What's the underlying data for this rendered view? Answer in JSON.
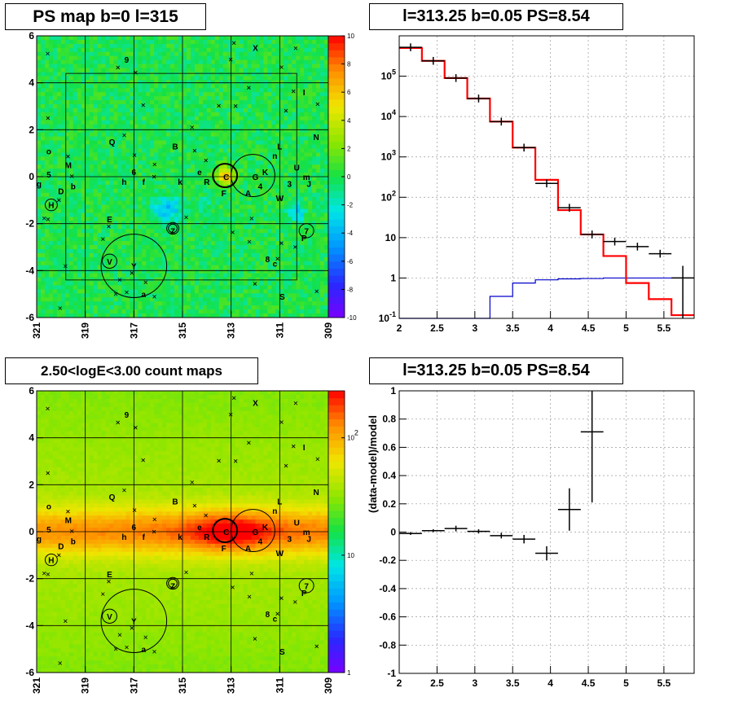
{
  "panels": {
    "top_left_title": "PS map b=0 l=315",
    "top_right_title": "l=313.25 b=0.05 PS=8.54",
    "bottom_left_title": "2.50<logE<3.00 count maps",
    "bottom_right_title": "l=313.25 b=0.05 PS=8.54"
  },
  "colors": {
    "data": "#000000",
    "model": "#ff0000",
    "background_model": "#0000cc",
    "grid": "#9a9a9a"
  },
  "chart_data": [
    {
      "type": "heatmap",
      "title": "PS map b=0 l=315",
      "x_ticks": [
        "321",
        "319",
        "317",
        "315",
        "313",
        "311",
        "309"
      ],
      "y_ticks": [
        "-6",
        "-4",
        "-2",
        "0",
        "2",
        "4",
        "6"
      ],
      "xlim": [
        321,
        309
      ],
      "ylim": [
        -6,
        6
      ],
      "colorbar_ticks": [
        "-10",
        "-8",
        "-6",
        "-4",
        "-2",
        "0",
        "2",
        "4",
        "6",
        "8",
        "10"
      ],
      "colorbar_range": [
        -10,
        10
      ],
      "labels": [
        {
          "text": "9",
          "l": 317.3,
          "b": 5.0
        },
        {
          "text": "X",
          "l": 312.0,
          "b": 5.5
        },
        {
          "text": "I",
          "l": 310.0,
          "b": 3.6
        },
        {
          "text": "N",
          "l": 309.5,
          "b": 1.7
        },
        {
          "text": "Q",
          "l": 317.9,
          "b": 1.5
        },
        {
          "text": "B",
          "l": 315.3,
          "b": 1.3
        },
        {
          "text": "L",
          "l": 311.0,
          "b": 1.3
        },
        {
          "text": "n",
          "l": 311.2,
          "b": 0.9
        },
        {
          "text": "o",
          "l": 320.5,
          "b": 1.1
        },
        {
          "text": "M",
          "l": 319.7,
          "b": 0.5
        },
        {
          "text": "U",
          "l": 310.3,
          "b": 0.4
        },
        {
          "text": "5",
          "l": 320.5,
          "b": 0.1
        },
        {
          "text": "6",
          "l": 317.0,
          "b": 0.2
        },
        {
          "text": "e",
          "l": 314.3,
          "b": 0.2
        },
        {
          "text": "m",
          "l": 309.9,
          "b": 0.0
        },
        {
          "text": "g",
          "l": 320.9,
          "b": -0.3
        },
        {
          "text": "D",
          "l": 320.0,
          "b": -0.6
        },
        {
          "text": "b",
          "l": 319.5,
          "b": -0.4
        },
        {
          "text": "h",
          "l": 317.4,
          "b": -0.2
        },
        {
          "text": "f",
          "l": 316.6,
          "b": -0.2
        },
        {
          "text": "k",
          "l": 315.1,
          "b": -0.2
        },
        {
          "text": "R",
          "l": 314.0,
          "b": -0.2
        },
        {
          "text": "C",
          "l": 313.2,
          "b": 0.0
        },
        {
          "text": "G",
          "l": 312.0,
          "b": 0.0
        },
        {
          "text": "K",
          "l": 311.6,
          "b": 0.2
        },
        {
          "text": "F",
          "l": 313.3,
          "b": -0.7
        },
        {
          "text": "4",
          "l": 311.8,
          "b": -0.4
        },
        {
          "text": "A",
          "l": 312.3,
          "b": -0.7
        },
        {
          "text": "3",
          "l": 310.6,
          "b": -0.3
        },
        {
          "text": "J",
          "l": 309.8,
          "b": -0.3
        },
        {
          "text": "W",
          "l": 311.0,
          "b": -0.9
        },
        {
          "text": "H",
          "l": 320.4,
          "b": -1.2
        },
        {
          "text": "E",
          "l": 318.0,
          "b": -1.8
        },
        {
          "text": "Z",
          "l": 315.4,
          "b": -2.3
        },
        {
          "text": "7",
          "l": 309.9,
          "b": -2.3
        },
        {
          "text": "P",
          "l": 310.0,
          "b": -2.6
        },
        {
          "text": "V",
          "l": 318.0,
          "b": -3.6
        },
        {
          "text": "Y",
          "l": 317.0,
          "b": -3.8
        },
        {
          "text": "8",
          "l": 311.5,
          "b": -3.5
        },
        {
          "text": "c",
          "l": 311.2,
          "b": -3.7
        },
        {
          "text": "a",
          "l": 316.6,
          "b": -5.0
        },
        {
          "text": "S",
          "l": 310.9,
          "b": -5.1
        }
      ]
    },
    {
      "type": "line",
      "title": "l=313.25 b=0.05 PS=8.54",
      "x_ticks": [
        "2",
        "2.5",
        "3",
        "3.5",
        "4",
        "4.5",
        "5",
        "5.5"
      ],
      "y_ticks": [
        "10^-1",
        "1",
        "10",
        "10^2",
        "10^3",
        "10^4",
        "10^5"
      ],
      "xlim": [
        2,
        5.9
      ],
      "ylim": [
        0.1,
        1000000
      ],
      "yscale": "log",
      "grid": true,
      "bin_edges": [
        2.0,
        2.3,
        2.6,
        2.9,
        3.2,
        3.5,
        3.8,
        4.1,
        4.4,
        4.7,
        5.0,
        5.3,
        5.6,
        5.9
      ],
      "series": [
        {
          "values": [
            500000,
            240000,
            90000,
            28000,
            7500,
            1700,
            270,
            48,
            12,
            3.5,
            0.75,
            0.3,
            0.12
          ]
        },
        {
          "values": [
            0.1,
            0.1,
            0.1,
            0.1,
            0.35,
            0.75,
            0.9,
            0.95,
            0.97,
            1.0,
            1.0,
            1.0,
            1.0
          ]
        },
        {
          "values": [
            520000,
            240000,
            90000,
            28000,
            7500,
            1700,
            220,
            55,
            12,
            8,
            6,
            4,
            1
          ]
        }
      ]
    },
    {
      "type": "heatmap",
      "title": "2.50<logE<3.00 count maps",
      "x_ticks": [
        "321",
        "319",
        "317",
        "315",
        "313",
        "311",
        "309"
      ],
      "y_ticks": [
        "-6",
        "-4",
        "-2",
        "0",
        "2",
        "4",
        "6"
      ],
      "xlim": [
        321,
        309
      ],
      "ylim": [
        -6,
        6
      ],
      "colorbar_ticks": [
        "1",
        "10",
        "10^2"
      ],
      "colorbar_scale": "log"
    },
    {
      "type": "scatter",
      "title": "l=313.25 b=0.05 PS=8.54",
      "x_ticks": [
        "2",
        "2.5",
        "3",
        "3.5",
        "4",
        "4.5",
        "5",
        "5.5"
      ],
      "y_ticks": [
        "-1",
        "-0.8",
        "-0.6",
        "-0.4",
        "-0.2",
        "0",
        "0.2",
        "0.4",
        "0.6",
        "0.8",
        "1"
      ],
      "ylabel": "(data-model)/model",
      "xlim": [
        2,
        5.9
      ],
      "ylim": [
        -1,
        1
      ],
      "grid": true,
      "x": [
        2.15,
        2.45,
        2.75,
        3.05,
        3.35,
        3.65,
        3.95,
        4.25,
        4.55
      ],
      "values": [
        -0.01,
        0.01,
        0.025,
        0.005,
        -0.025,
        -0.05,
        -0.15,
        0.16,
        0.71
      ],
      "y_err": [
        0.01,
        0.01,
        0.02,
        0.015,
        0.02,
        0.03,
        0.05,
        0.15,
        0.5
      ],
      "x_err": 0.15
    }
  ]
}
